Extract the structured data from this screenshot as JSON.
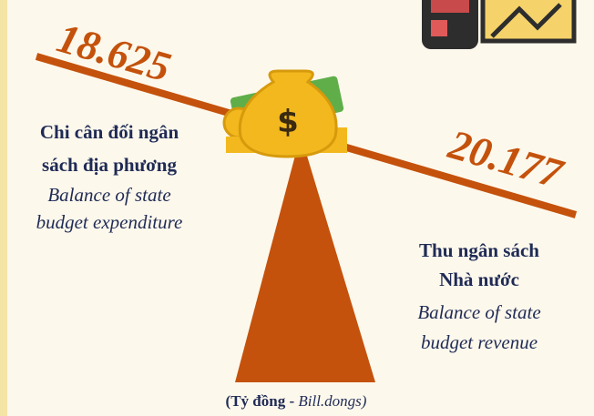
{
  "values": {
    "left": "18.625",
    "right": "20.177"
  },
  "left_label": {
    "vn": [
      "Chi cân đối ngân",
      "sách địa phương"
    ],
    "en": [
      "Balance of state",
      "budget expenditure"
    ]
  },
  "right_label": {
    "vn": [
      "Thu ngân sách",
      "Nhà nước"
    ],
    "en": [
      "Balance of state",
      "budget revenue"
    ]
  },
  "unit": {
    "open": "(",
    "vn": "Tỷ đồng -",
    "en": "Bill.dongs)"
  }
}
